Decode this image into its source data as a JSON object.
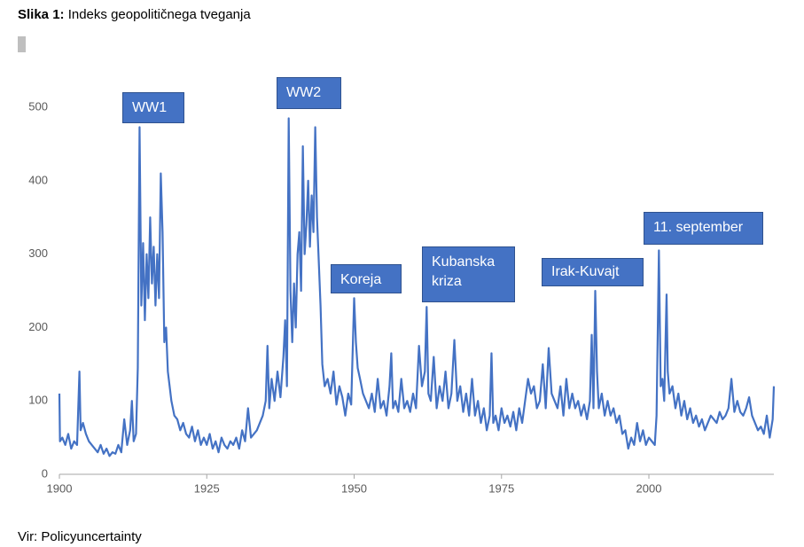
{
  "chart_data": {
    "type": "line",
    "title_label": "Slika 1:",
    "title": "Indeks geopolitičnega tveganja",
    "source": "Vir: Policyuncertainty",
    "color": "#4472c4",
    "xlim": [
      1900,
      2021.2
    ],
    "xticks": [
      1900,
      1925,
      1950,
      1975,
      2000
    ],
    "ylim": [
      0,
      540
    ],
    "yticks": [
      0,
      100,
      200,
      300,
      400,
      500
    ],
    "annotations": [
      "WW1",
      "WW2",
      "Koreja",
      "Kubanska kriza",
      "Irak-Kuvajt",
      "11. september"
    ],
    "x": [
      1900,
      1900.1,
      1900.5,
      1901,
      1901.5,
      1902,
      1902.5,
      1903,
      1903.4,
      1903.6,
      1904,
      1904.5,
      1905,
      1905.5,
      1906,
      1906.5,
      1907,
      1907.5,
      1908,
      1908.5,
      1909,
      1909.5,
      1910,
      1910.5,
      1911,
      1911.5,
      1912,
      1912.3,
      1912.6,
      1913,
      1913.3,
      1913.6,
      1913.9,
      1914.2,
      1914.5,
      1914.8,
      1915.1,
      1915.4,
      1915.7,
      1916,
      1916.3,
      1916.6,
      1916.9,
      1917.2,
      1917.5,
      1917.8,
      1918.1,
      1918.4,
      1918.7,
      1919,
      1919.5,
      1920,
      1920.5,
      1921,
      1921.5,
      1922,
      1922.5,
      1923,
      1923.5,
      1924,
      1924.5,
      1925,
      1925.5,
      1926,
      1926.5,
      1927,
      1927.5,
      1928,
      1928.5,
      1929,
      1929.5,
      1930,
      1930.5,
      1931,
      1931.5,
      1932,
      1932.5,
      1933,
      1933.5,
      1934,
      1934.5,
      1935,
      1935.3,
      1935.6,
      1936,
      1936.5,
      1937,
      1937.5,
      1938,
      1938.3,
      1938.6,
      1938.9,
      1939.2,
      1939.5,
      1939.8,
      1940.1,
      1940.4,
      1940.7,
      1941,
      1941.3,
      1941.6,
      1941.9,
      1942.2,
      1942.5,
      1942.8,
      1943.1,
      1943.4,
      1943.7,
      1944,
      1944.3,
      1944.6,
      1945,
      1945.5,
      1946,
      1946.5,
      1947,
      1947.5,
      1948,
      1948.5,
      1949,
      1949.5,
      1950,
      1950.3,
      1950.6,
      1951,
      1951.5,
      1952,
      1952.5,
      1953,
      1953.5,
      1954,
      1954.5,
      1955,
      1955.5,
      1956,
      1956.3,
      1956.6,
      1957,
      1957.5,
      1958,
      1958.5,
      1959,
      1959.5,
      1960,
      1960.5,
      1961,
      1961.5,
      1962,
      1962.3,
      1962.6,
      1963,
      1963.5,
      1964,
      1964.5,
      1965,
      1965.5,
      1966,
      1966.5,
      1967,
      1967.5,
      1968,
      1968.5,
      1969,
      1969.5,
      1970,
      1970.5,
      1971,
      1971.5,
      1972,
      1972.5,
      1973,
      1973.3,
      1973.6,
      1974,
      1974.5,
      1975,
      1975.5,
      1976,
      1976.5,
      1977,
      1977.5,
      1978,
      1978.5,
      1979,
      1979.5,
      1980,
      1980.5,
      1981,
      1981.5,
      1982,
      1982.5,
      1983,
      1983.5,
      1984,
      1984.5,
      1985,
      1985.5,
      1986,
      1986.5,
      1987,
      1987.5,
      1988,
      1988.5,
      1989,
      1989.5,
      1990,
      1990.3,
      1990.6,
      1990.9,
      1991.2,
      1991.5,
      1992,
      1992.5,
      1993,
      1993.5,
      1994,
      1994.5,
      1995,
      1995.5,
      1996,
      1996.5,
      1997,
      1997.5,
      1998,
      1998.5,
      1999,
      1999.5,
      2000,
      2000.5,
      2001,
      2001.3,
      2001.7,
      2002,
      2002.3,
      2002.6,
      2003,
      2003.2,
      2003.5,
      2004,
      2004.5,
      2005,
      2005.5,
      2006,
      2006.5,
      2007,
      2007.5,
      2008,
      2008.5,
      2009,
      2009.5,
      2010,
      2010.5,
      2011,
      2011.5,
      2012,
      2012.5,
      2013,
      2013.5,
      2014,
      2014.5,
      2015,
      2015.5,
      2016,
      2016.5,
      2017,
      2017.5,
      2018,
      2018.5,
      2019,
      2019.5,
      2020,
      2020.5,
      2021,
      2021.2
    ],
    "values": [
      110,
      45,
      50,
      40,
      55,
      35,
      45,
      40,
      140,
      60,
      70,
      55,
      45,
      40,
      35,
      30,
      40,
      28,
      35,
      25,
      30,
      28,
      40,
      30,
      75,
      40,
      60,
      100,
      45,
      55,
      145,
      473,
      230,
      315,
      210,
      300,
      240,
      350,
      260,
      310,
      230,
      300,
      240,
      410,
      330,
      180,
      200,
      140,
      120,
      100,
      80,
      75,
      60,
      70,
      55,
      50,
      65,
      45,
      60,
      40,
      50,
      40,
      55,
      35,
      45,
      30,
      50,
      40,
      35,
      45,
      40,
      50,
      35,
      60,
      45,
      90,
      50,
      55,
      60,
      70,
      80,
      100,
      175,
      90,
      130,
      100,
      140,
      105,
      160,
      210,
      120,
      485,
      250,
      180,
      260,
      200,
      300,
      330,
      250,
      447,
      300,
      340,
      400,
      310,
      380,
      330,
      473,
      350,
      290,
      230,
      150,
      120,
      130,
      110,
      140,
      95,
      120,
      105,
      80,
      110,
      95,
      240,
      180,
      145,
      130,
      110,
      100,
      90,
      110,
      85,
      130,
      90,
      100,
      80,
      120,
      165,
      90,
      100,
      85,
      130,
      90,
      100,
      85,
      110,
      90,
      175,
      120,
      140,
      228,
      110,
      100,
      160,
      90,
      120,
      100,
      140,
      90,
      110,
      183,
      100,
      120,
      85,
      110,
      80,
      130,
      80,
      100,
      70,
      90,
      60,
      80,
      165,
      70,
      80,
      60,
      90,
      70,
      80,
      65,
      85,
      60,
      90,
      70,
      100,
      130,
      110,
      120,
      90,
      100,
      150,
      90,
      172,
      110,
      100,
      90,
      120,
      80,
      130,
      90,
      110,
      90,
      100,
      80,
      95,
      75,
      100,
      190,
      90,
      250,
      140,
      90,
      110,
      80,
      100,
      80,
      90,
      70,
      80,
      55,
      60,
      35,
      50,
      40,
      70,
      45,
      60,
      40,
      50,
      45,
      40,
      80,
      305,
      120,
      130,
      100,
      245,
      140,
      110,
      120,
      90,
      110,
      80,
      100,
      75,
      90,
      70,
      80,
      65,
      75,
      60,
      70,
      80,
      75,
      70,
      85,
      75,
      80,
      90,
      130,
      85,
      100,
      85,
      80,
      90,
      105,
      80,
      70,
      60,
      65,
      55,
      80,
      50,
      75,
      120
    ]
  }
}
